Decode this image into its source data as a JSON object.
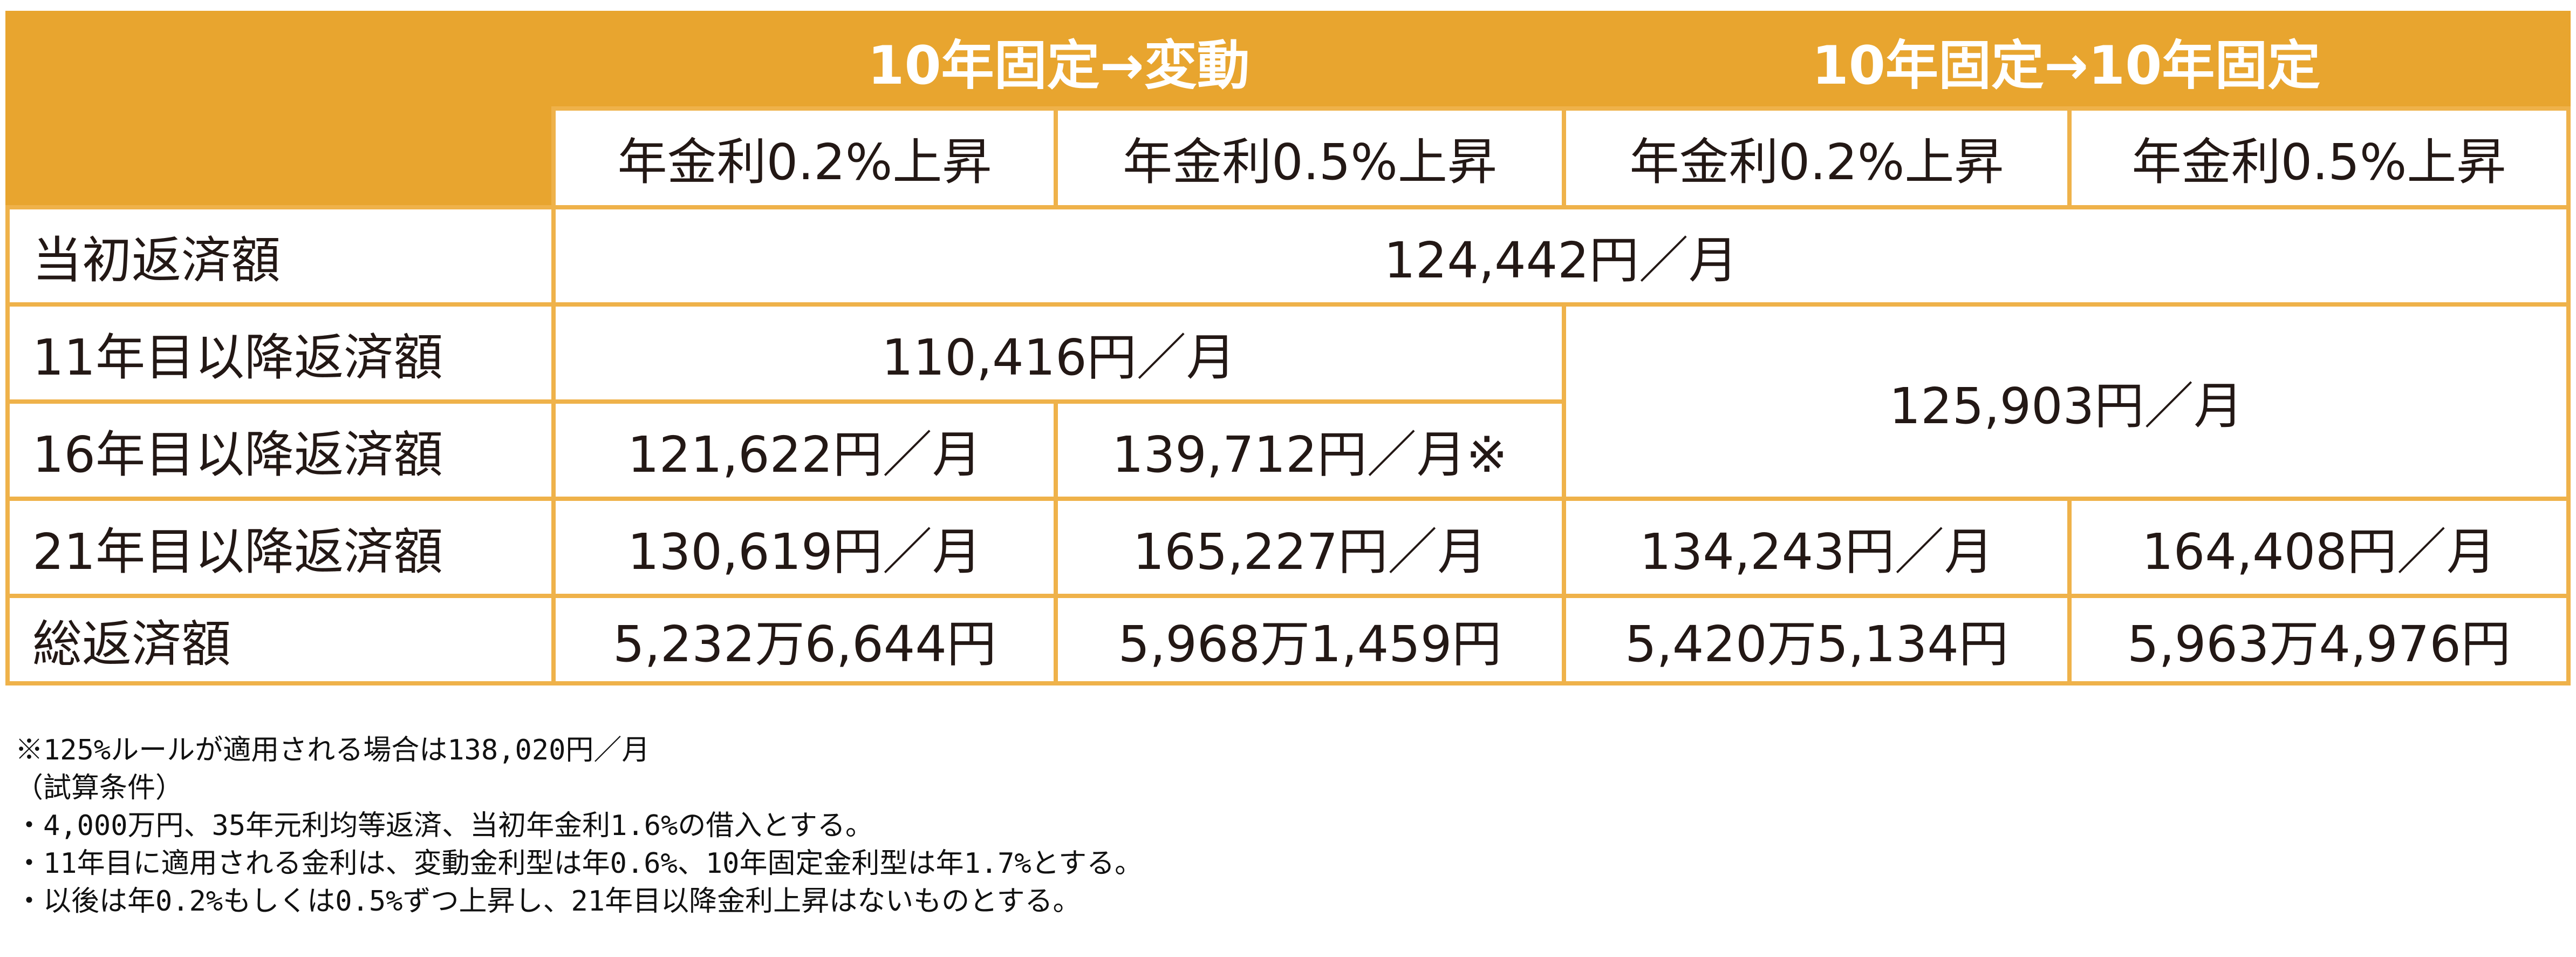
{
  "table": {
    "group_headers": [
      "10年固定→変動",
      "10年固定→10年固定"
    ],
    "sub_headers": [
      "年金利0.2%上昇",
      "年金利0.5%上昇",
      "年金利0.2%上昇",
      "年金利0.5%上昇"
    ],
    "rows": {
      "initial": {
        "label": "当初返済額",
        "value": "124,442円／月"
      },
      "year11": {
        "label": "11年目以降返済額",
        "variable": "110,416円／月",
        "fixed": "125,903円／月"
      },
      "year16": {
        "label": "16年目以降返済額",
        "cells": [
          "121,622円／月",
          "139,712円／月※"
        ]
      },
      "year21": {
        "label": "21年目以降返済額",
        "cells": [
          "130,619円／月",
          "165,227円／月",
          "134,243円／月",
          "164,408円／月"
        ]
      },
      "total": {
        "label": "総返済額",
        "cells": [
          "5,232万6,644円",
          "5,968万1,459円",
          "5,420万5,134円",
          "5,963万4,976円"
        ]
      }
    }
  },
  "notes": [
    "※125%ルールが適用される場合は138,020円／月",
    "（試算条件）",
    "・4,000万円、35年元利均等返済、当初年金利1.6%の借入とする。",
    "・11年目に適用される金利は、変動金利型は年0.6%、10年固定金利型は年1.7%とする。",
    "・以後は年0.2%もしくは0.5%ずつ上昇し、21年目以降金利上昇はないものとする。"
  ],
  "colors": {
    "header_bg": "#e8a52f",
    "border": "#efb24a",
    "header_text": "#ffffff",
    "text": "#231815"
  }
}
